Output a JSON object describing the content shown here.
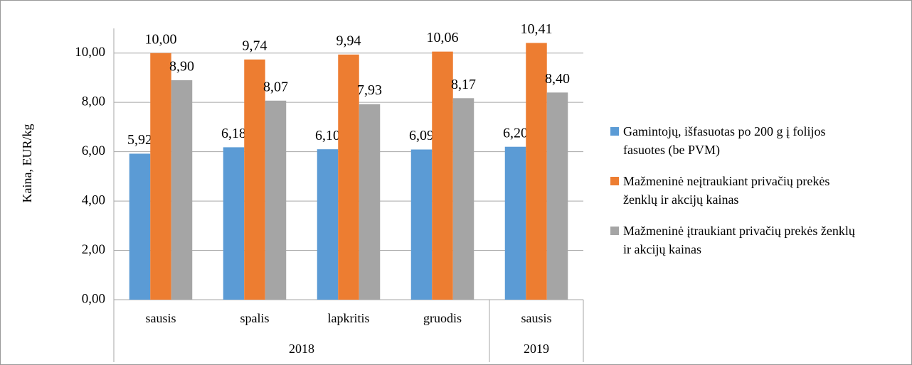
{
  "chart_data": {
    "type": "bar",
    "y_label": "Kaina, EUR/kg",
    "categories": [
      "sausis",
      "spalis",
      "lapkritis",
      "gruodis",
      "sausis"
    ],
    "groups": [
      {
        "name": "2018",
        "size": 4
      },
      {
        "name": "2019",
        "size": 1
      }
    ],
    "series": [
      {
        "name": "Gamintojų, išfasuotas po 200 g į folijos fasuotes (be PVM)",
        "color": "#5b9bd5",
        "values": [
          5.92,
          6.18,
          6.1,
          6.09,
          6.2
        ],
        "value_labels": [
          "5,92",
          "6,18",
          "6,10",
          "6,09",
          "6,20"
        ]
      },
      {
        "name": "Mažmeninė neįtraukiant privačių prekės ženklų ir akcijų kainas",
        "color": "#ed7d31",
        "values": [
          10.0,
          9.74,
          9.94,
          10.06,
          10.41
        ],
        "value_labels": [
          "10,00",
          "9,74",
          "9,94",
          "10,06",
          "10,41"
        ]
      },
      {
        "name": "Mažmeninė įtraukiant privačių prekės ženklų ir akcijų kainas",
        "color": "#a5a5a5",
        "values": [
          8.9,
          8.07,
          7.93,
          8.17,
          8.4
        ],
        "value_labels": [
          "8,90",
          "8,07",
          "7,93",
          "8,17",
          "8,40"
        ]
      }
    ],
    "ylim": [
      0,
      11
    ],
    "yticks": [
      {
        "value": 0,
        "label": "0,00"
      },
      {
        "value": 2,
        "label": "2,00"
      },
      {
        "value": 4,
        "label": "4,00"
      },
      {
        "value": 6,
        "label": "6,00"
      },
      {
        "value": 8,
        "label": "8,00"
      },
      {
        "value": 10,
        "label": "10,00"
      }
    ],
    "grid": true
  }
}
